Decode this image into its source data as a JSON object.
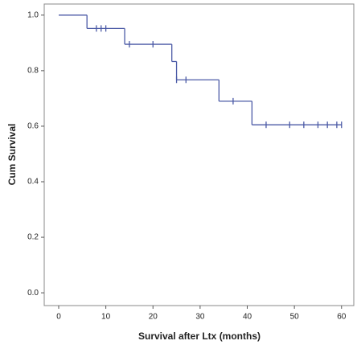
{
  "chart_data": {
    "type": "step",
    "x_label": "Survival after Ltx (months)",
    "y_label": "Cum Survival",
    "x": [
      0,
      6,
      14,
      24,
      25,
      34,
      41,
      60
    ],
    "values": [
      1.0,
      0.952,
      0.895,
      0.833,
      0.767,
      0.69,
      0.605,
      0.605
    ],
    "censored_x": [
      8,
      9,
      10,
      15,
      20,
      25,
      27,
      37,
      44,
      49,
      52,
      55,
      57,
      59,
      60
    ],
    "censored_values": [
      0.952,
      0.952,
      0.952,
      0.895,
      0.895,
      0.767,
      0.767,
      0.69,
      0.605,
      0.605,
      0.605,
      0.605,
      0.605,
      0.605,
      0.605
    ],
    "color": "#4b5aa6",
    "xlim": [
      -3.07,
      62.6
    ],
    "ylim": [
      -0.046,
      1.04
    ],
    "xticks": [
      0,
      10,
      20,
      30,
      40,
      50,
      60
    ],
    "yticks": [
      {
        "value": 0,
        "label": "0.0"
      },
      {
        "value": 0.2,
        "label": "0.2"
      },
      {
        "value": 0.4,
        "label": "0.4"
      },
      {
        "value": 0.6,
        "label": "0.6"
      },
      {
        "value": 0.8,
        "label": "0.8"
      },
      {
        "value": 1,
        "label": "1.0"
      }
    ]
  }
}
